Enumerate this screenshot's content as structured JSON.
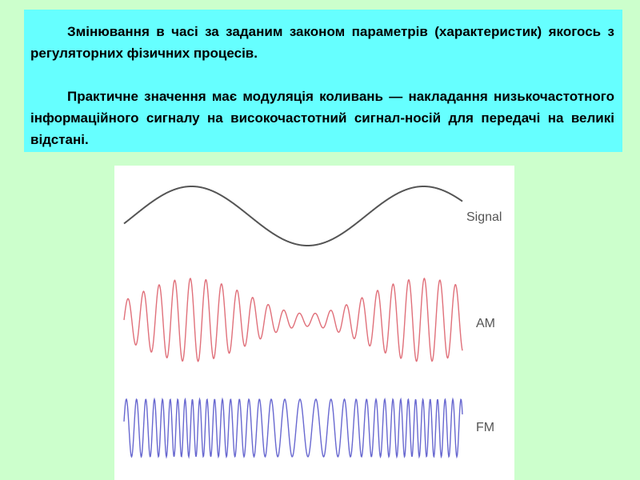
{
  "text": {
    "paragraphs": [
      "Змінювання в часі за заданим законом параметрів (характеристик) якогось з регуляторних фізичних процесів.",
      "Практичне значення має модуляція коливань — накладання низькочастотного інформаційного сигналу на високочастотний сигнал-носій для передачі на великі відстані."
    ]
  },
  "figure": {
    "labels": [
      "Signal",
      "AM",
      "FM"
    ]
  }
}
